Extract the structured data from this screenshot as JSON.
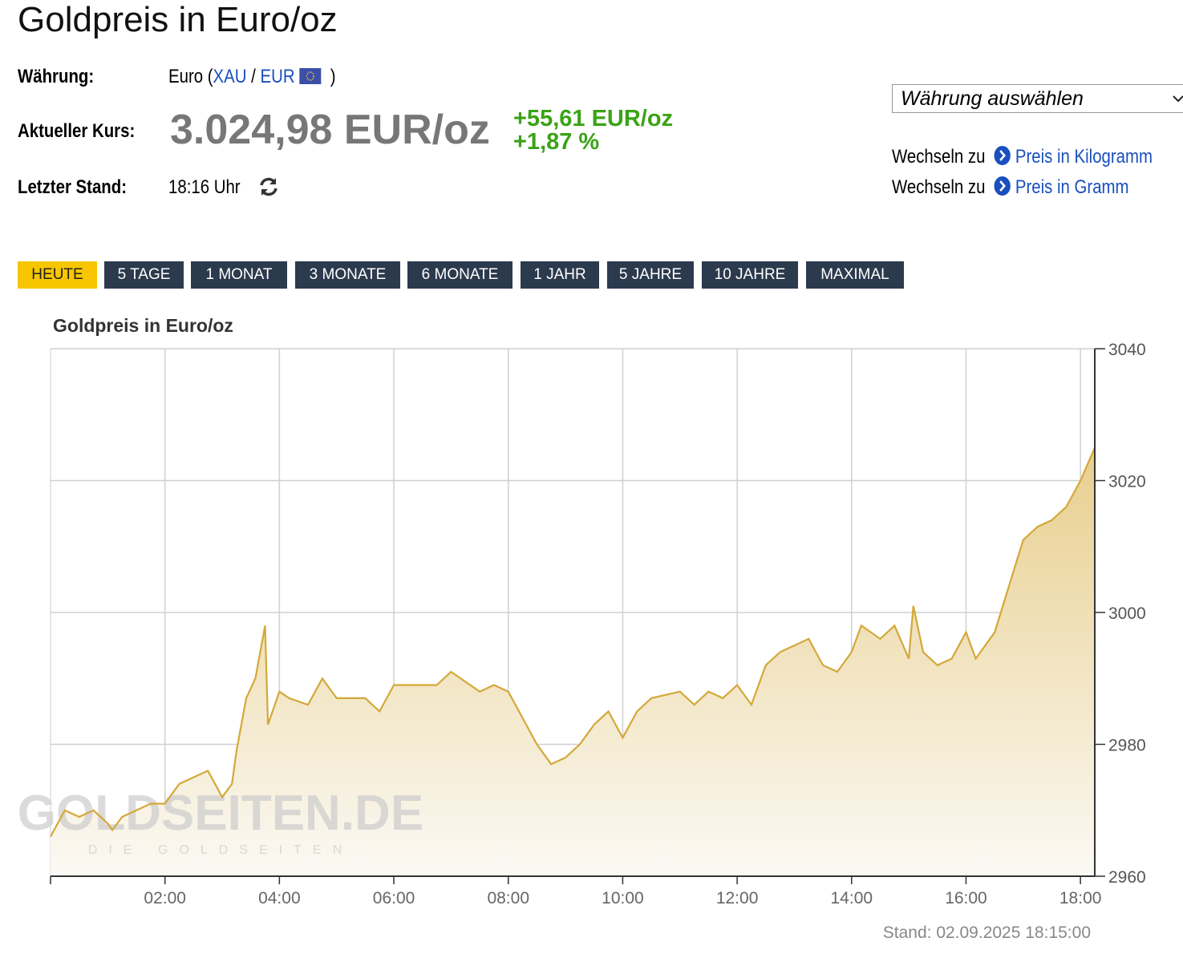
{
  "header": {
    "title": "Goldpreis in Euro/oz",
    "currency_label": "Währung:",
    "currency_value": "Euro (",
    "currency_xau": "XAU",
    "currency_sep": "/",
    "currency_eur": "EUR",
    "currency_close": ")",
    "price_label": "Aktueller Kurs:",
    "price": "3.024,98 EUR/oz",
    "change_abs": "+55,61 EUR/oz",
    "change_pct": "+1,87 %",
    "time_label": "Letzter Stand:",
    "time": "18:16 Uhr",
    "select": "Währung auswählen",
    "switch1_text": "Wechseln zu",
    "switch1_link": "Preis in Kilogramm",
    "switch2_text": "Wechseln zu",
    "switch2_link": "Preis in Gramm"
  },
  "tabs": [
    "HEUTE",
    "5 TAGE",
    "1 MONAT",
    "3 MONATE",
    "6 MONATE",
    "1 JAHR",
    "5 JAHRE",
    "10 JAHRE",
    "MAXIMAL"
  ],
  "active_tab": 0,
  "chart_data": {
    "type": "area",
    "title": "Goldpreis in Euro/oz",
    "watermark": "GOLDSEITEN.DE",
    "watermark_sub": "DIE GOLDSEITEN",
    "footer": "Stand: 02.09.2025 18:15:00",
    "color": "#d4a83a",
    "x": [
      0,
      0.25,
      0.5,
      0.75,
      1,
      1.08,
      1.25,
      1.5,
      1.75,
      2,
      2.25,
      2.5,
      2.75,
      3,
      3.17,
      3.25,
      3.42,
      3.58,
      3.75,
      3.8,
      4,
      4.17,
      4.5,
      4.75,
      5,
      5.5,
      5.75,
      6,
      6.5,
      6.75,
      7,
      7.5,
      7.75,
      8,
      8.25,
      8.5,
      8.75,
      9,
      9.25,
      9.5,
      9.75,
      10,
      10.25,
      10.5,
      11,
      11.25,
      11.5,
      11.75,
      12,
      12.25,
      12.5,
      12.75,
      13,
      13.25,
      13.5,
      13.75,
      14,
      14.17,
      14.5,
      14.75,
      15,
      15.08,
      15.25,
      15.5,
      15.75,
      16,
      16.17,
      16.5,
      16.75,
      17,
      17.25,
      17.5,
      17.75,
      18,
      18.25
    ],
    "values": [
      2966,
      2970,
      2969,
      2970,
      2968,
      2967,
      2969,
      2970,
      2971,
      2971,
      2974,
      2975,
      2976,
      2972,
      2974,
      2979,
      2987,
      2990,
      2998,
      2983,
      2988,
      2987,
      2986,
      2990,
      2987,
      2987,
      2985,
      2989,
      2989,
      2989,
      2991,
      2988,
      2989,
      2988,
      2984,
      2980,
      2977,
      2978,
      2980,
      2983,
      2985,
      2981,
      2985,
      2987,
      2988,
      2986,
      2988,
      2987,
      2989,
      2986,
      2992,
      2994,
      2995,
      2996,
      2992,
      2991,
      2994,
      2998,
      2996,
      2998,
      2993,
      3001,
      2994,
      2992,
      2993,
      2997,
      2993,
      2997,
      3004,
      3011,
      3013,
      3014,
      3016,
      3020,
      3025
    ],
    "xlim": [
      0,
      18.25
    ],
    "ylim": [
      2960,
      3040
    ],
    "xticks": [
      {
        "value": 2,
        "label": "02:00"
      },
      {
        "value": 4,
        "label": "04:00"
      },
      {
        "value": 6,
        "label": "06:00"
      },
      {
        "value": 8,
        "label": "08:00"
      },
      {
        "value": 10,
        "label": "10:00"
      },
      {
        "value": 12,
        "label": "12:00"
      },
      {
        "value": 14,
        "label": "14:00"
      },
      {
        "value": 16,
        "label": "16:00"
      },
      {
        "value": 18,
        "label": "18:00"
      }
    ],
    "yticks": [
      2960,
      2980,
      3000,
      3020,
      3040
    ],
    "grid": true
  }
}
